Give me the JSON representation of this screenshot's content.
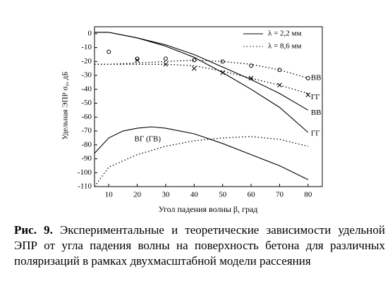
{
  "chart_data": {
    "type": "line",
    "x_label": "Угол падения волны β, град",
    "y_label": "Удельная ЭПР σ₀, дБ",
    "xlim": [
      5,
      85
    ],
    "xticks": [
      10,
      20,
      30,
      40,
      50,
      60,
      70,
      80
    ],
    "ylim": [
      -110,
      5
    ],
    "yticks": [
      0,
      -10,
      -20,
      -30,
      -40,
      -50,
      -60,
      -70,
      -80,
      -90,
      -100,
      -110
    ],
    "legend": [
      {
        "label": "λ = 2,2 мм",
        "style": "solid"
      },
      {
        "label": "λ = 8,6 мм",
        "style": "dotted"
      }
    ],
    "series": [
      {
        "kind": "line",
        "style": "solid",
        "color": "#000000",
        "x": [
          5,
          10,
          20,
          30,
          40,
          50,
          60,
          70,
          80
        ],
        "values": [
          1,
          1,
          -3,
          -8,
          -15,
          -24,
          -33,
          -43,
          -55
        ]
      },
      {
        "kind": "line",
        "style": "solid",
        "color": "#000000",
        "x": [
          5,
          10,
          20,
          30,
          40,
          50,
          60,
          70,
          80
        ],
        "values": [
          1,
          1,
          -3,
          -9,
          -17,
          -28,
          -40,
          -53,
          -71
        ]
      },
      {
        "kind": "line",
        "style": "solid",
        "color": "#000000",
        "x": [
          5,
          10,
          15,
          20,
          25,
          30,
          40,
          50,
          60,
          70,
          80
        ],
        "values": [
          -86,
          -75,
          -70,
          -68,
          -67,
          -68,
          -72,
          -79,
          -87,
          -95,
          -105
        ]
      },
      {
        "kind": "line",
        "style": "dotted",
        "color": "#000000",
        "x": [
          5,
          10,
          20,
          30,
          40,
          50,
          60,
          70,
          80
        ],
        "values": [
          -22,
          -22,
          -21,
          -20,
          -19,
          -20,
          -22,
          -26,
          -32
        ]
      },
      {
        "kind": "line",
        "style": "dotted",
        "color": "#000000",
        "x": [
          5,
          10,
          20,
          30,
          40,
          50,
          60,
          70,
          80
        ],
        "values": [
          -22,
          -22,
          -22,
          -22,
          -23,
          -27,
          -32,
          -37,
          -43
        ]
      },
      {
        "kind": "line",
        "style": "dotted",
        "color": "#000000",
        "x": [
          5,
          10,
          20,
          30,
          40,
          50,
          60,
          70,
          80
        ],
        "values": [
          -110,
          -96,
          -87,
          -81,
          -77,
          -75,
          -74,
          -76,
          -81
        ]
      },
      {
        "kind": "scatter",
        "marker": "circle",
        "color": "#000000",
        "x": [
          10,
          20,
          30,
          40,
          50,
          60,
          70,
          80
        ],
        "values": [
          -13,
          -18,
          -18,
          -19,
          -20,
          -23,
          -26,
          -32
        ]
      },
      {
        "kind": "scatter",
        "marker": "cross",
        "color": "#000000",
        "x": [
          20,
          30,
          40,
          50,
          60,
          70,
          80
        ],
        "values": [
          -19,
          -22,
          -25,
          -28,
          -32,
          -37,
          -44
        ]
      }
    ],
    "annotations": [
      {
        "text": "ВВ",
        "x": 81,
        "y": -32
      },
      {
        "text": "ГГ",
        "x": 81,
        "y": -46
      },
      {
        "text": "ВВ",
        "x": 81,
        "y": -57
      },
      {
        "text": "ГГ",
        "x": 81,
        "y": -72
      },
      {
        "text": "ВГ (ГВ)",
        "x": 19,
        "y": -76
      }
    ]
  },
  "caption": {
    "label": "Рис. 9.",
    "text": "Экспериментальные и теоретические зависимости удельной ЭПР от угла падения волны на поверхность бетона для различных поляризаций в рамках двухмасштабной модели рассеяния"
  }
}
